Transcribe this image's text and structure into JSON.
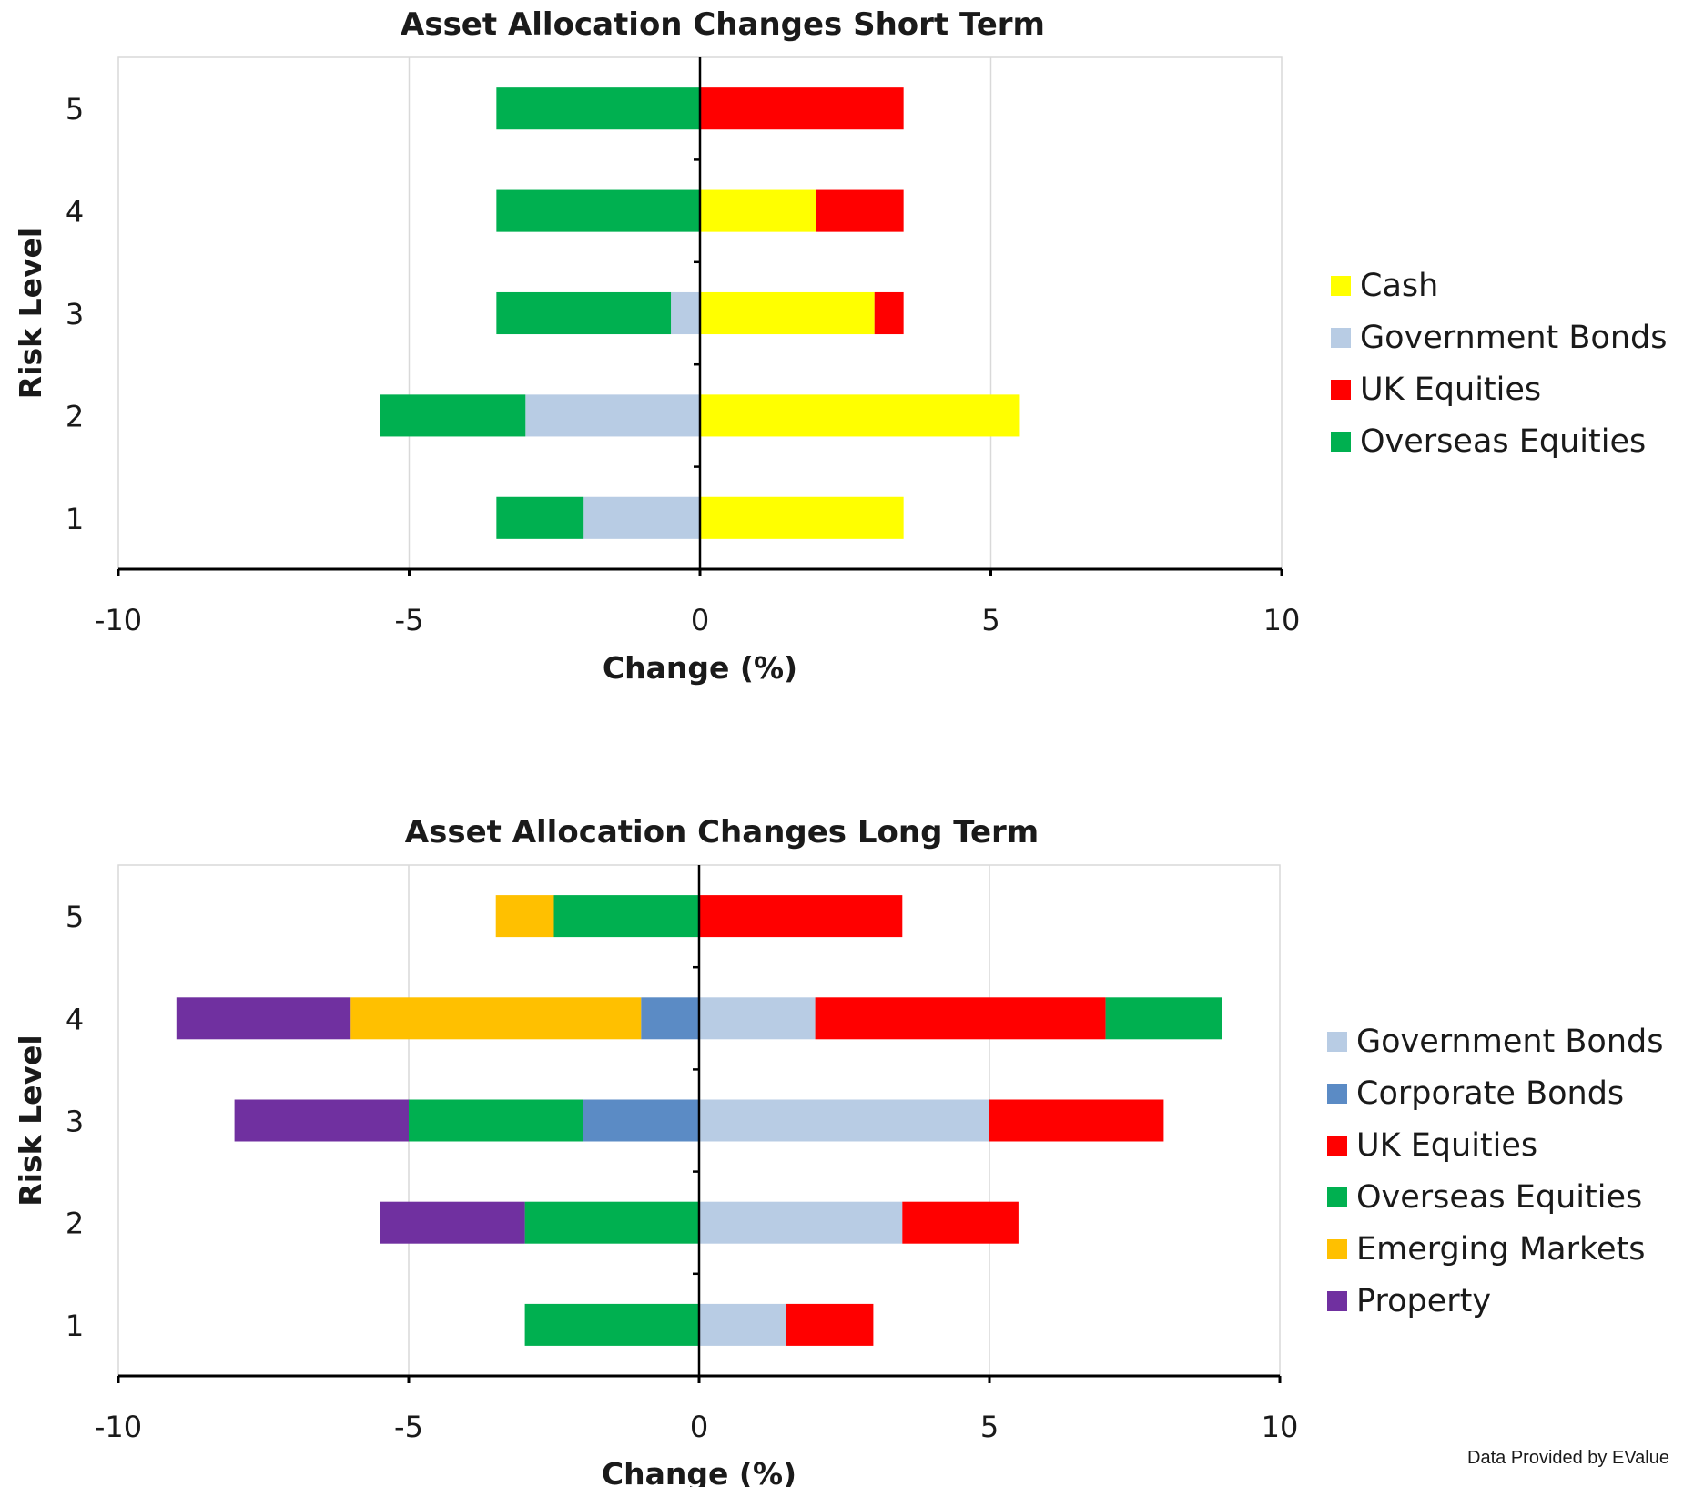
{
  "footer_text": "Data Provided by EValue",
  "chart_data": [
    {
      "type": "bar",
      "orientation": "horizontal",
      "stacked": "diverging",
      "title": "Asset Allocation Changes Short Term",
      "xlabel": "Change (%)",
      "ylabel": "Risk Level",
      "xlim": [
        -10,
        10
      ],
      "xticks": [
        "-10",
        "-5",
        "0",
        "5",
        "10"
      ],
      "categories": [
        "1",
        "2",
        "3",
        "4",
        "5"
      ],
      "grid": true,
      "legend_position": "right",
      "series": [
        {
          "name": "Cash",
          "color": "#FFFF00",
          "values": [
            3.5,
            5.5,
            3,
            2,
            0
          ]
        },
        {
          "name": "Government Bonds",
          "color": "#B8CCE4",
          "values": [
            -2,
            -3,
            -0.5,
            0,
            0
          ]
        },
        {
          "name": "UK Equities",
          "color": "#FF0000",
          "values": [
            0,
            0,
            0.5,
            1.5,
            3.5
          ]
        },
        {
          "name": "Overseas Equities",
          "color": "#00B050",
          "values": [
            -1.5,
            -2.5,
            -3,
            -3.5,
            -3.5
          ]
        }
      ],
      "stack_order": {
        "positive": [
          "Cash",
          "UK Equities"
        ],
        "negative": [
          "Government Bonds",
          "Overseas Equities"
        ]
      }
    },
    {
      "type": "bar",
      "orientation": "horizontal",
      "stacked": "diverging",
      "title": "Asset Allocation Changes Long Term",
      "xlabel": "Change (%)",
      "ylabel": "Risk Level",
      "xlim": [
        -10,
        10
      ],
      "xticks": [
        "-10",
        "-5",
        "0",
        "5",
        "10"
      ],
      "categories": [
        "1",
        "2",
        "3",
        "4",
        "5"
      ],
      "grid": true,
      "legend_position": "right",
      "series": [
        {
          "name": "Government Bonds",
          "color": "#B8CCE4",
          "values": [
            1.5,
            3.5,
            5,
            2,
            0
          ]
        },
        {
          "name": "Corporate Bonds",
          "color": "#5B8BC5",
          "values": [
            0,
            0,
            -2,
            -1,
            0
          ]
        },
        {
          "name": "UK Equities",
          "color": "#FF0000",
          "values": [
            1.5,
            2,
            3,
            5,
            3.5
          ]
        },
        {
          "name": "Overseas Equities",
          "color": "#00B050",
          "values": [
            -3,
            -3,
            -3,
            2,
            -2.5
          ]
        },
        {
          "name": "Emerging Markets",
          "color": "#FFC000",
          "values": [
            0,
            0,
            0,
            -5,
            -1
          ]
        },
        {
          "name": "Property",
          "color": "#7030A0",
          "values": [
            0,
            -2.5,
            -3,
            -3,
            0
          ]
        }
      ],
      "stack_order": {
        "positive": [
          "Government Bonds",
          "UK Equities",
          "Overseas Equities"
        ],
        "negative": [
          "Corporate Bonds",
          "Overseas Equities",
          "Emerging Markets",
          "Property"
        ]
      }
    }
  ]
}
